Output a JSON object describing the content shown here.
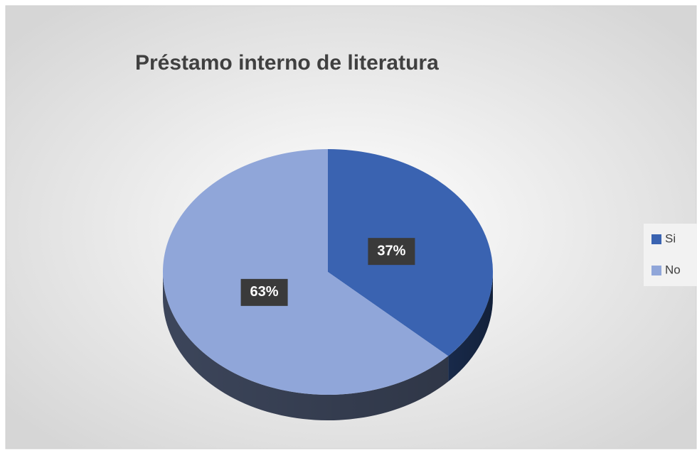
{
  "chart_data": {
    "type": "pie",
    "title": "Préstamo interno de literatura",
    "categories": [
      "Si",
      "No"
    ],
    "values": [
      37,
      63
    ],
    "value_labels": [
      "37%",
      "63%"
    ],
    "colors": [
      "#3a63b1",
      "#90a6d9"
    ],
    "legend": "right"
  }
}
